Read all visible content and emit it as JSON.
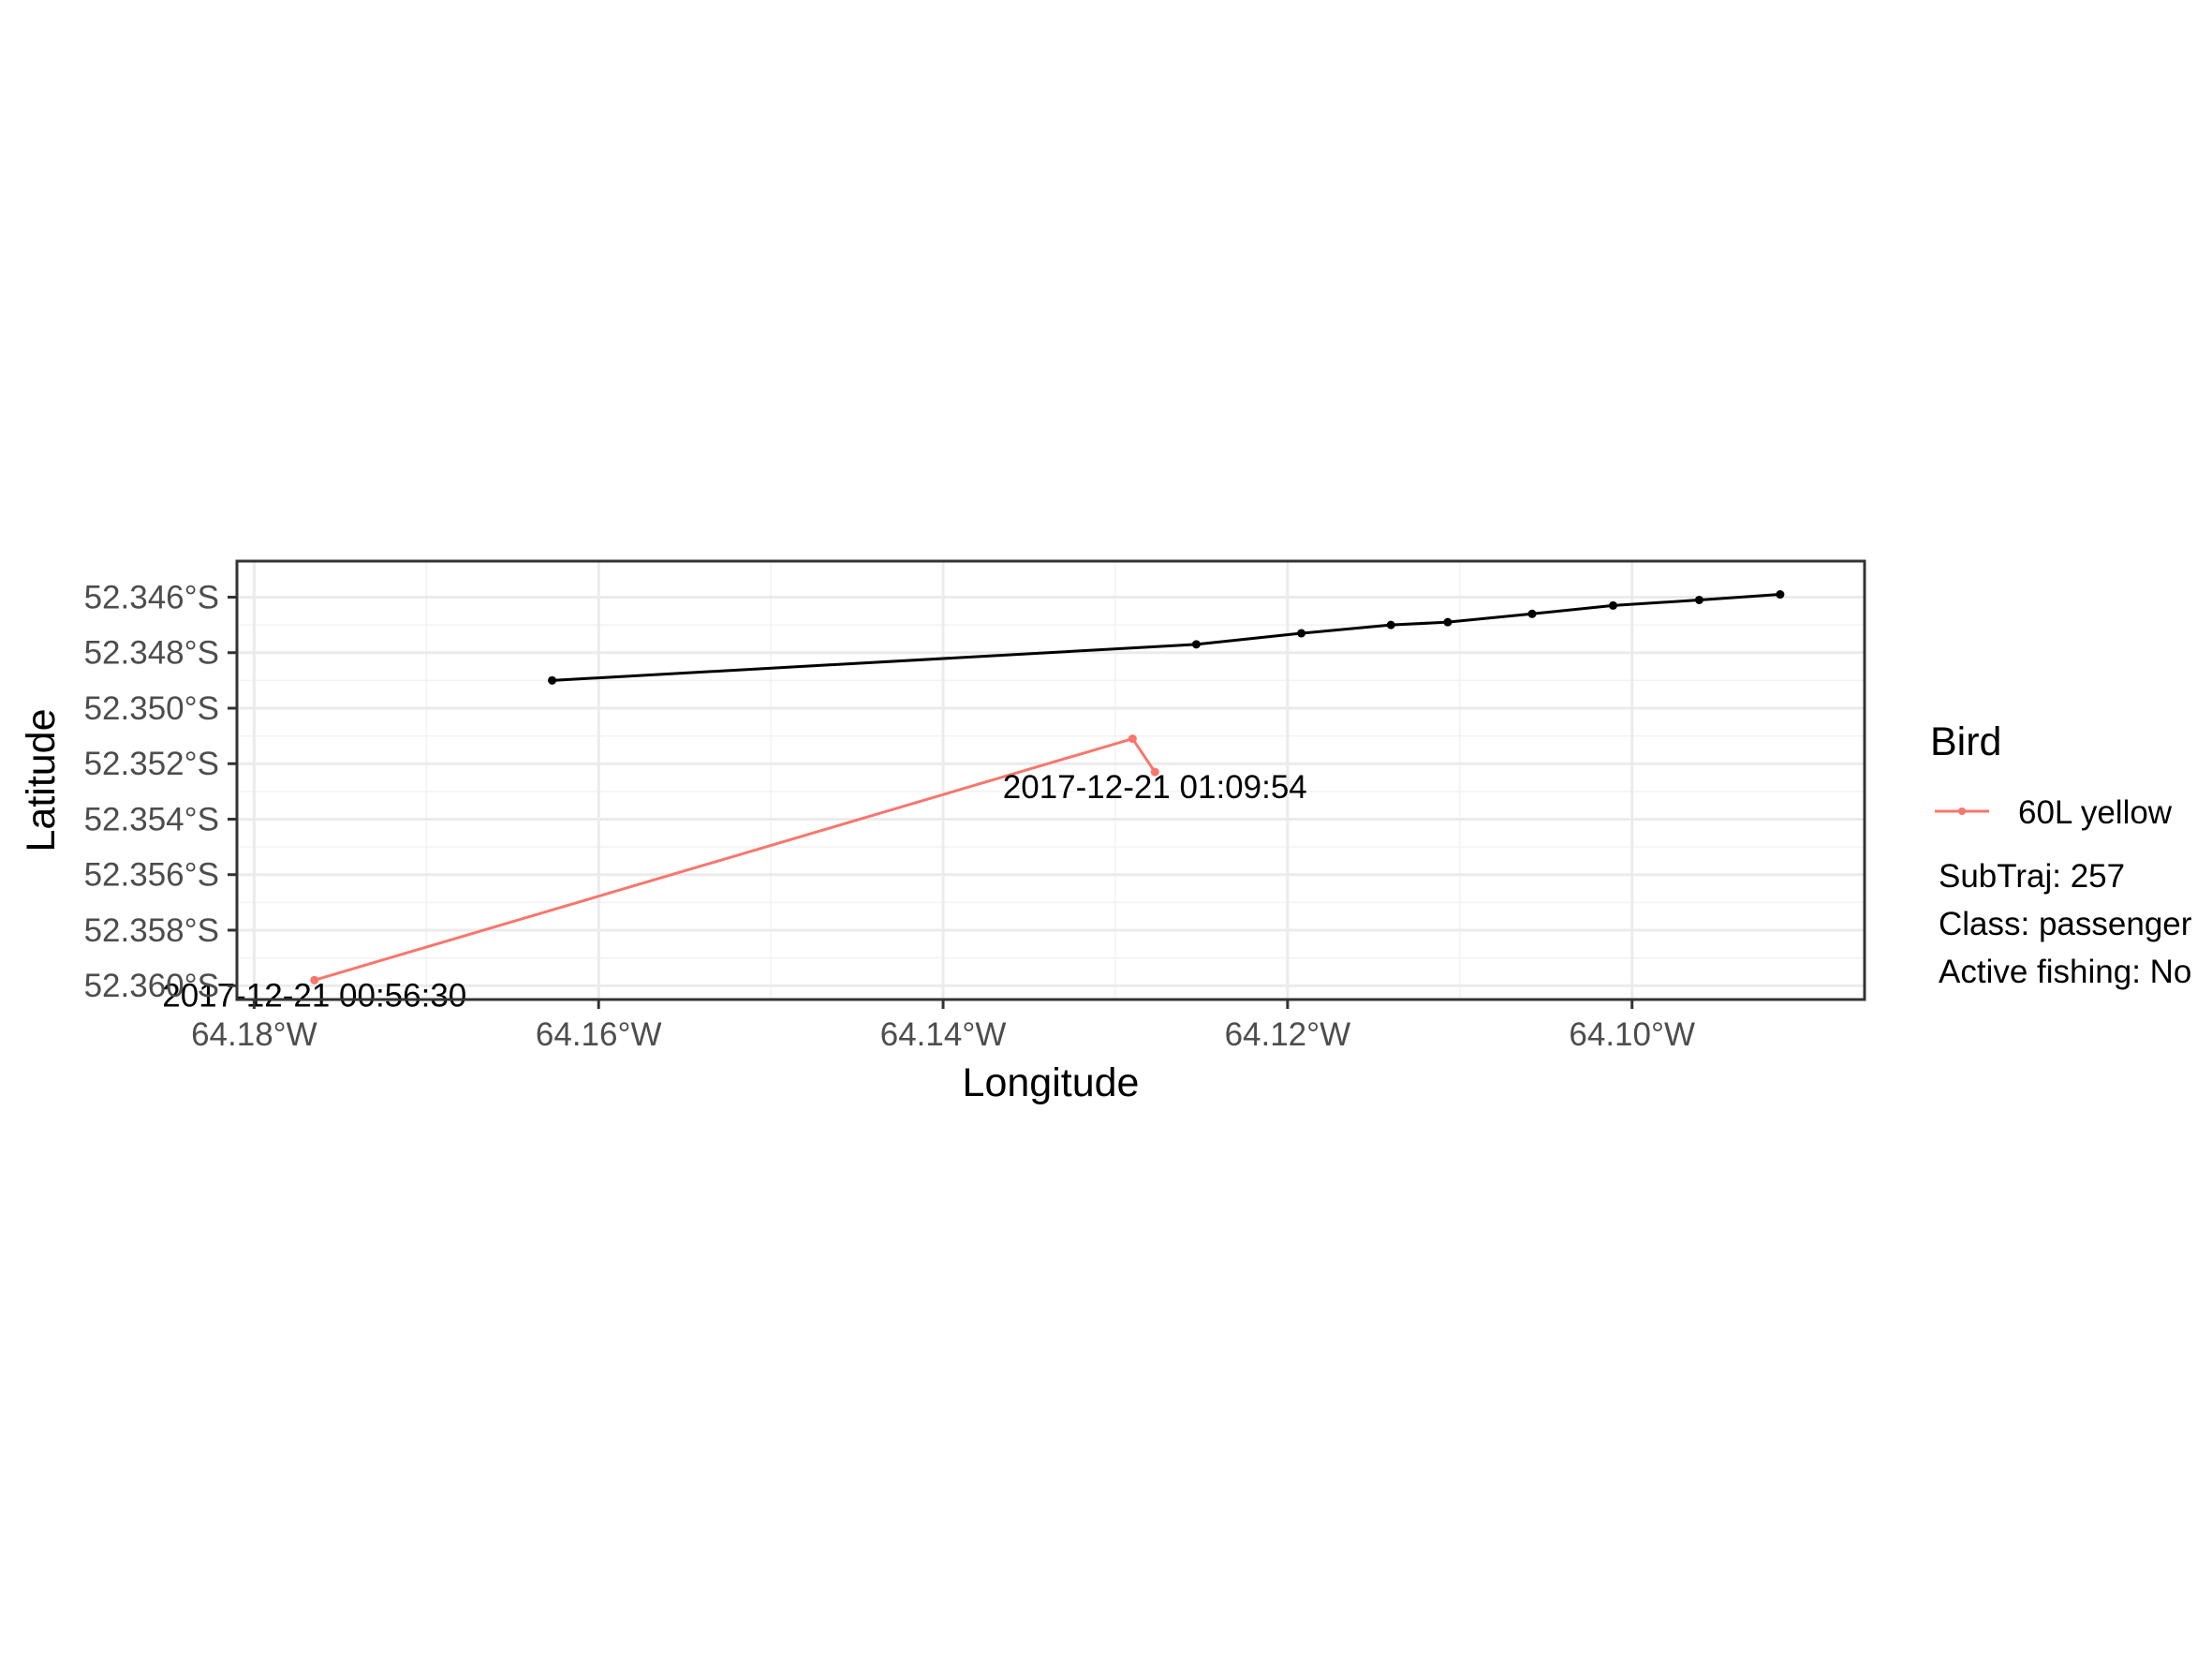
{
  "chart_data": {
    "type": "line",
    "xlabel": "Longitude",
    "ylabel": "Latitude",
    "xlim": [
      -64.181,
      -64.0865
    ],
    "ylim": [
      -52.3605,
      -52.3447
    ],
    "x_ticks": [
      {
        "value": -64.18,
        "label": "64.18°W"
      },
      {
        "value": -64.16,
        "label": "64.16°W"
      },
      {
        "value": -64.14,
        "label": "64.14°W"
      },
      {
        "value": -64.12,
        "label": "64.12°W"
      },
      {
        "value": -64.1,
        "label": "64.10°W"
      }
    ],
    "y_ticks": [
      {
        "value": -52.346,
        "label": "52.346°S"
      },
      {
        "value": -52.348,
        "label": "52.348°S"
      },
      {
        "value": -52.35,
        "label": "52.350°S"
      },
      {
        "value": -52.352,
        "label": "52.352°S"
      },
      {
        "value": -52.354,
        "label": "52.354°S"
      },
      {
        "value": -52.356,
        "label": "52.356°S"
      },
      {
        "value": -52.358,
        "label": "52.358°S"
      },
      {
        "value": -52.36,
        "label": "52.360°S"
      }
    ],
    "grid": true,
    "legend_position": "right",
    "legend_title": "Bird",
    "series": [
      {
        "name": "60L yellow",
        "color": "#F8766D",
        "points": [
          {
            "x": -64.1765,
            "y": -52.3598
          },
          {
            "x": -64.129,
            "y": -52.3511
          },
          {
            "x": -64.1277,
            "y": -52.3523
          }
        ]
      },
      {
        "color": "#000000",
        "points": [
          {
            "x": -64.1627,
            "y": -52.349
          },
          {
            "x": -64.1253,
            "y": -52.3477
          },
          {
            "x": -64.1192,
            "y": -52.3473
          },
          {
            "x": -64.114,
            "y": -52.347
          },
          {
            "x": -64.1107,
            "y": -52.3469
          },
          {
            "x": -64.1058,
            "y": -52.3466
          },
          {
            "x": -64.1011,
            "y": -52.3463
          },
          {
            "x": -64.0961,
            "y": -52.3461
          },
          {
            "x": -64.0914,
            "y": -52.3459
          }
        ]
      }
    ],
    "annotations": [
      {
        "text": "2017-12-21 00:56:30",
        "x": -64.1765,
        "y": -52.3598
      },
      {
        "text": "2017-12-21 01:09:54",
        "x": -64.1277,
        "y": -52.3523
      }
    ],
    "legend_extra_lines": [
      "SubTraj: 257",
      "Class: passenger",
      "Active fishing: No"
    ]
  }
}
